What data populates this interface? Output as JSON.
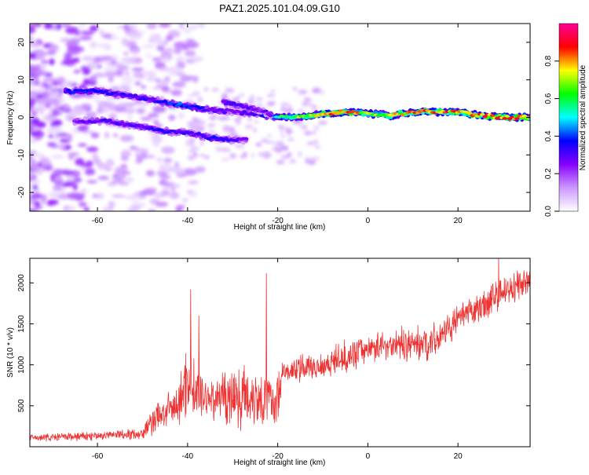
{
  "title": "PAZ1.2025.101.04.09.G10",
  "chart_data": [
    {
      "type": "heatmap",
      "xlabel": "Height of straight line (km)",
      "ylabel": "Frequency (Hz)",
      "xlim": [
        -75,
        36
      ],
      "ylim": [
        -25,
        25
      ],
      "x_ticks": [
        -60,
        -40,
        -20,
        0,
        20
      ],
      "y_ticks": [
        -20,
        -10,
        0,
        10,
        20
      ],
      "colorbar": {
        "label": "Normalized spectral amplitude",
        "range": [
          0,
          1
        ],
        "ticks": [
          0.0,
          0.2,
          0.4,
          0.6,
          0.8
        ],
        "tick_labels": [
          "0.0",
          "0.2",
          "0.4",
          "0.6",
          "0.8"
        ],
        "colormap": [
          "#ffffff",
          "#cc99ff",
          "#8800ff",
          "#0000ff",
          "#00ffff",
          "#00ff00",
          "#ffff00",
          "#ff0000",
          "#ff0099"
        ]
      },
      "ridges": [
        {
          "x": [
            -67,
            -60,
            -52,
            -45,
            -40,
            -35,
            -30,
            -25,
            -20,
            -15,
            -10,
            -5,
            0,
            5,
            10,
            15,
            20,
            25,
            30,
            36
          ],
          "freq": [
            7,
            7,
            5.5,
            4,
            3,
            2,
            1.5,
            1,
            0,
            0,
            1,
            1.5,
            1,
            0.5,
            1.5,
            1.5,
            1.5,
            0.5,
            0,
            0
          ],
          "amplitude": [
            0.35,
            0.35,
            0.3,
            0.35,
            0.4,
            0.3,
            0.25,
            0.3,
            0.55,
            0.65,
            0.75,
            0.8,
            0.7,
            0.7,
            0.75,
            0.8,
            0.8,
            0.8,
            0.85,
            0.8
          ]
        },
        {
          "x": [
            -65,
            -58,
            -50,
            -46,
            -43,
            -40,
            -35,
            -30,
            -27
          ],
          "freq": [
            -1,
            -1,
            -2.5,
            -3.5,
            -4,
            -4,
            -5.5,
            -6,
            -6
          ],
          "amplitude": [
            0.25,
            0.3,
            0.3,
            0.35,
            0.3,
            0.3,
            0.35,
            0.3,
            0.25
          ]
        },
        {
          "x": [
            -32,
            -28,
            -24,
            -21
          ],
          "freq": [
            4,
            3,
            2,
            0.5
          ],
          "amplitude": [
            0.3,
            0.3,
            0.25,
            0.3
          ]
        }
      ]
    },
    {
      "type": "line",
      "xlabel": "Height of straight line (km)",
      "ylabel": "SNR (10 * v/v)",
      "xlim": [
        -75,
        36
      ],
      "ylim": [
        0,
        2300
      ],
      "x_ticks": [
        -60,
        -40,
        -20,
        0,
        20
      ],
      "y_ticks": [
        500,
        1000,
        1500,
        2000
      ],
      "line_color": "#ee3333",
      "envelope": {
        "x": [
          -75,
          -60,
          -55,
          -50,
          -48,
          -45,
          -42,
          -40,
          -38,
          -35,
          -30,
          -25,
          -20,
          -19,
          -18,
          -15,
          -10,
          -5,
          0,
          5,
          10,
          15,
          20,
          25,
          30,
          36
        ],
        "mean": [
          110,
          130,
          150,
          160,
          300,
          420,
          500,
          850,
          650,
          600,
          620,
          620,
          550,
          950,
          900,
          950,
          1000,
          1100,
          1200,
          1250,
          1250,
          1300,
          1550,
          1700,
          1900,
          2000
        ],
        "spread": [
          50,
          70,
          80,
          80,
          200,
          250,
          300,
          550,
          400,
          350,
          450,
          450,
          400,
          150,
          150,
          200,
          200,
          220,
          200,
          220,
          250,
          250,
          200,
          220,
          250,
          200
        ]
      },
      "spikes": [
        {
          "x": -39.3,
          "y": 1920
        },
        {
          "x": -22.5,
          "y": 2120
        },
        {
          "x": 29,
          "y": 2300
        },
        {
          "x": -37.5,
          "y": 1600
        }
      ]
    }
  ]
}
